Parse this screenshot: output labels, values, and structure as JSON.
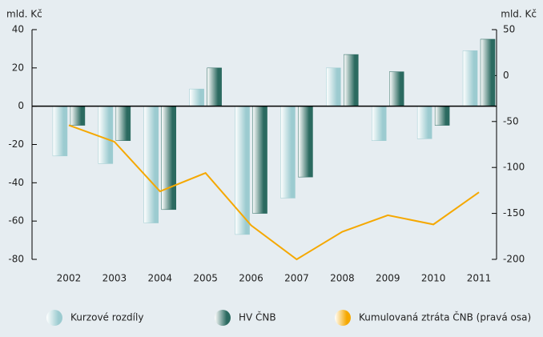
{
  "chart_data": {
    "type": "bar",
    "y_label": "mld. Kč",
    "y2_label": "mld. Kč",
    "categories": [
      "2002",
      "2003",
      "2004",
      "2005",
      "2006",
      "2007",
      "2008",
      "2009",
      "2010",
      "2011"
    ],
    "series": [
      {
        "name": "Kurzové rozdíly",
        "color": "#9ccbd0",
        "values": [
          -26,
          -30,
          -61,
          9,
          -67,
          -48,
          20,
          -18,
          -17,
          29
        ]
      },
      {
        "name": "HV ČNB",
        "color": "#2b6a60",
        "values": [
          -10,
          -18,
          -54,
          20,
          -56,
          -37,
          27,
          18,
          -10,
          35
        ]
      },
      {
        "name": "Kumulovaná ztráta ČNB (pravá osa)",
        "color": "#f5a800",
        "type": "line",
        "axis": "y2",
        "values": [
          -54,
          -72,
          -126,
          -106,
          -163,
          -200,
          -170,
          -152,
          -162,
          -127
        ]
      }
    ],
    "ylim": [
      -80,
      40
    ],
    "yticks": [
      -80,
      -60,
      -40,
      -20,
      0,
      20,
      40
    ],
    "y2lim": [
      -200,
      50
    ],
    "y2ticks": [
      -200,
      -150,
      -100,
      -50,
      0,
      50
    ]
  }
}
